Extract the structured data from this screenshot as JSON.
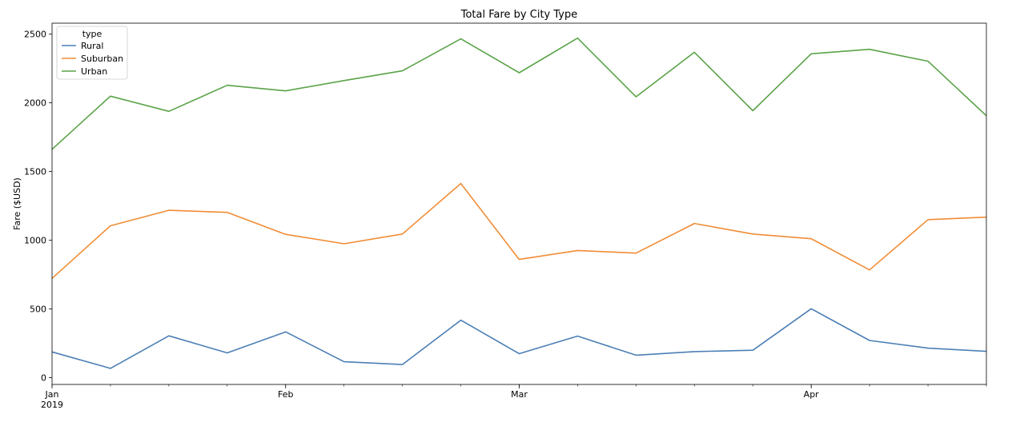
{
  "chart_data": {
    "type": "line",
    "title": "Total Fare by City Type",
    "xlabel": "",
    "ylabel": "Fare ($USD)",
    "ylim": [
      -50,
      2580
    ],
    "yticks": [
      0,
      500,
      1000,
      1500,
      2000,
      2500
    ],
    "x": [
      "2019-01-06",
      "2019-01-13",
      "2019-01-20",
      "2019-01-27",
      "2019-02-03",
      "2019-02-10",
      "2019-02-17",
      "2019-02-24",
      "2019-03-03",
      "2019-03-10",
      "2019-03-17",
      "2019-03-24",
      "2019-03-31",
      "2019-04-07",
      "2019-04-14",
      "2019-04-21",
      "2019-04-28"
    ],
    "xticks": [
      {
        "date": "2019-01-06",
        "label": "Jan",
        "sublabel": "2019"
      },
      {
        "date": "2019-02-03",
        "label": "Feb",
        "sublabel": ""
      },
      {
        "date": "2019-03-03",
        "label": "Mar",
        "sublabel": ""
      },
      {
        "date": "2019-04-07",
        "label": "Apr",
        "sublabel": ""
      }
    ],
    "legend": {
      "title": "type",
      "position": "top-left"
    },
    "grid": false,
    "series": [
      {
        "name": "Rural",
        "color": "#4c7fb5",
        "values": [
          187,
          67,
          304,
          180,
          333,
          115,
          95,
          418,
          174,
          302,
          163,
          189,
          199,
          501,
          270,
          214,
          191
        ]
      },
      {
        "name": "Suburban",
        "color": "#f08d36",
        "values": [
          722,
          1105,
          1218,
          1203,
          1043,
          974,
          1045,
          1413,
          860,
          925,
          906,
          1122,
          1045,
          1011,
          784,
          1150,
          1168
        ]
      },
      {
        "name": "Urban",
        "color": "#5aa348",
        "values": [
          1662,
          2049,
          1938,
          2128,
          2087,
          2162,
          2233,
          2466,
          2219,
          2471,
          2044,
          2368,
          1943,
          2357,
          2390,
          2303,
          1906
        ]
      }
    ]
  }
}
